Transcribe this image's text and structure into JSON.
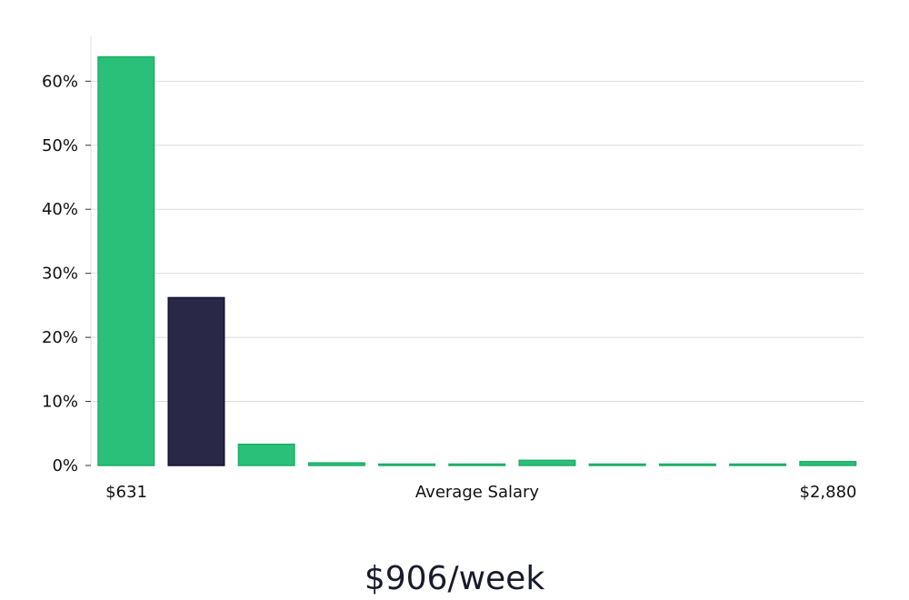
{
  "chart_data": {
    "type": "bar",
    "title": "",
    "xlabel": "Average Salary",
    "ylabel": "",
    "x_min_label": "$631",
    "x_max_label": "$2,880",
    "summary": "$906/week",
    "ylim": [
      0,
      67
    ],
    "y_ticks": [
      0,
      10,
      20,
      30,
      40,
      50,
      60
    ],
    "y_tick_suffix": "%",
    "grid": true,
    "values": [
      63.8,
      26.2,
      3.3,
      0.4,
      0.1,
      0.1,
      0.8,
      0.1,
      0.1,
      0.1,
      0.6
    ],
    "highlight_index": 1,
    "colors": {
      "bar": "#2bc07a",
      "bar_edge": "#1fae68",
      "highlight": "#2a2847",
      "highlight_edge": "#15132e",
      "grid": "#dddddd",
      "axis": "#e2e2e2"
    }
  }
}
